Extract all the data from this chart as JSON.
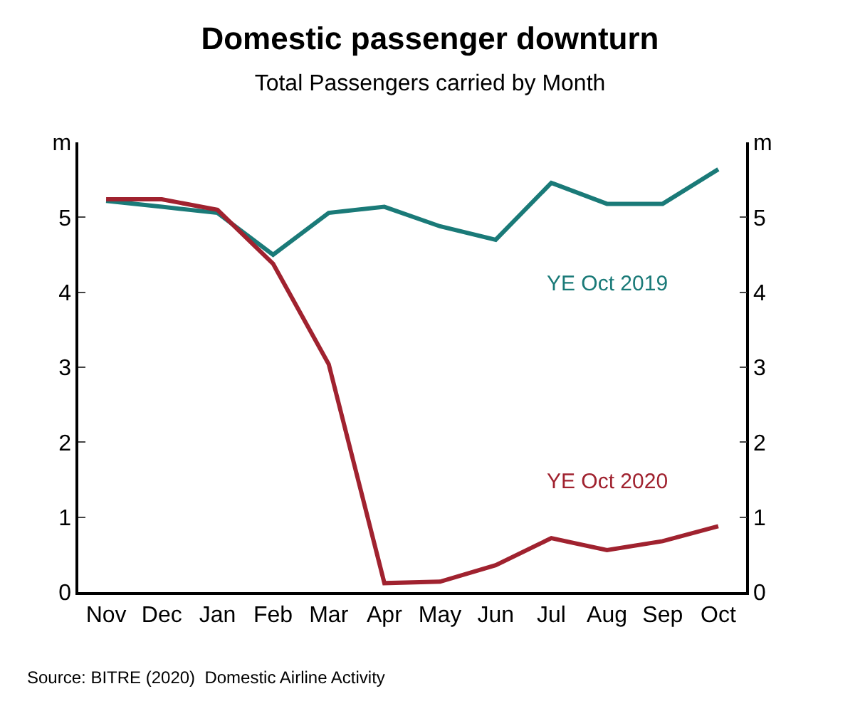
{
  "chart_data": {
    "type": "line",
    "title": "Domestic passenger downturn",
    "subtitle": "Total Passengers carried by Month",
    "categories": [
      "Nov",
      "Dec",
      "Jan",
      "Feb",
      "Mar",
      "Apr",
      "May",
      "Jun",
      "Jul",
      "Aug",
      "Sep",
      "Oct"
    ],
    "series": [
      {
        "name": "YE Oct 2019",
        "color": "#1a7a78",
        "values": [
          5.22,
          5.14,
          5.06,
          4.5,
          5.06,
          5.14,
          4.88,
          4.7,
          5.46,
          5.18,
          5.18,
          5.64
        ]
      },
      {
        "name": "YE Oct 2020",
        "color": "#a0222f",
        "values": [
          5.24,
          5.24,
          5.1,
          4.38,
          3.04,
          0.12,
          0.14,
          0.36,
          0.72,
          0.56,
          0.68,
          0.88
        ]
      }
    ],
    "ylim": [
      0,
      6
    ],
    "yticks": [
      0,
      1,
      2,
      3,
      4,
      5,
      {
        "value": 6,
        "label": "m"
      }
    ],
    "y2lim": [
      0,
      6
    ],
    "y2ticks": [
      0,
      1,
      2,
      3,
      4,
      5,
      {
        "value": 6,
        "label": "m"
      }
    ],
    "legend": false,
    "marker": "none",
    "line_style": "solid",
    "annotations": [
      "Source: BITRE (2020)  Domestic Airline Activity"
    ]
  }
}
